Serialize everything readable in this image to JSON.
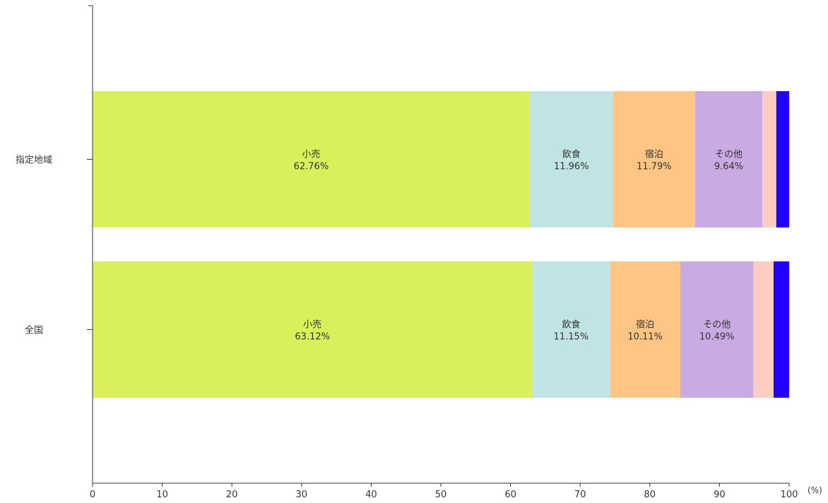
{
  "chart_data": {
    "type": "bar",
    "orientation": "horizontal",
    "stacked": true,
    "x_unit": "(%)",
    "xlim": [
      0,
      100
    ],
    "x_ticks": [
      0,
      10,
      20,
      30,
      40,
      50,
      60,
      70,
      80,
      90,
      100
    ],
    "grid": false,
    "categories": [
      "指定地域",
      "全国"
    ],
    "series": [
      {
        "name": "小売",
        "color": "#d9f05a",
        "values": [
          62.76,
          63.12
        ],
        "labels": [
          "62.76%",
          "63.12%"
        ]
      },
      {
        "name": "飲食",
        "color": "#c0e3e3",
        "values": [
          11.96,
          11.15
        ],
        "labels": [
          "11.96%",
          "11.15%"
        ]
      },
      {
        "name": "宿泊",
        "color": "#fec584",
        "values": [
          11.79,
          10.11
        ],
        "labels": [
          "11.79%",
          "10.11%"
        ]
      },
      {
        "name": "その他",
        "color": "#c9abe3",
        "values": [
          9.64,
          10.49
        ],
        "labels": [
          "9.64%",
          "10.49%"
        ]
      },
      {
        "name": "",
        "color": "#fdcdc2",
        "values": [
          2.0,
          2.9
        ],
        "labels": [
          "",
          ""
        ]
      },
      {
        "name": "",
        "color": "#2200ff",
        "values": [
          1.85,
          2.23
        ],
        "labels": [
          "",
          ""
        ]
      }
    ]
  }
}
